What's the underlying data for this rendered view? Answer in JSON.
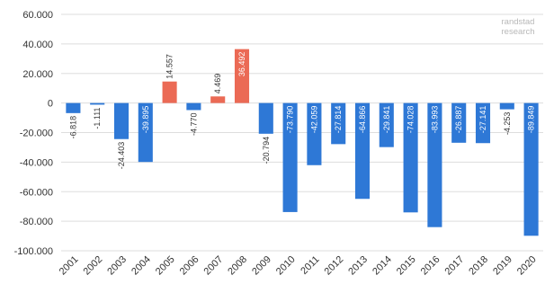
{
  "chart_data": {
    "type": "bar",
    "categories": [
      "2001",
      "2002",
      "2003",
      "2004",
      "2005",
      "2006",
      "2007",
      "2008",
      "2009",
      "2010",
      "2011",
      "2012",
      "2013",
      "2014",
      "2015",
      "2016",
      "2017",
      "2018",
      "2019",
      "2020"
    ],
    "values": [
      -6818,
      -1111,
      -24403,
      -39895,
      14557,
      -4770,
      4469,
      36492,
      -20794,
      -73790,
      -42059,
      -27814,
      -64866,
      -29841,
      -74028,
      -83993,
      -26887,
      -27141,
      -4253,
      -89849
    ],
    "data_labels": [
      "-6.818",
      "-1.111",
      "-24.403",
      "-39.895",
      "14.557",
      "-4.770",
      "4.469",
      "36.492",
      "-20.794",
      "-73.790",
      "-42.059",
      "-27.814",
      "-64.866",
      "-29.841",
      "-74.028",
      "-83.993",
      "-26.887",
      "-27.141",
      "-4.253",
      "-89.849"
    ],
    "y_tick_values": [
      60000,
      40000,
      20000,
      0,
      -20000,
      -40000,
      -60000,
      -80000,
      -100000
    ],
    "y_tick_labels": [
      "60.000",
      "40.000",
      "20.000",
      "0",
      "-20.000",
      "-40.000",
      "-60.000",
      "-80.000",
      "-100.000"
    ],
    "ylim": [
      -100000,
      60000
    ],
    "grid": true,
    "colors": {
      "positive": "#EB6A55",
      "negative": "#2E78D6",
      "grid": "#DDDDDD",
      "axis": "#666666"
    },
    "title": "",
    "xlabel": "",
    "ylabel": ""
  },
  "watermark": {
    "line1": "randstad",
    "line2": "research"
  }
}
